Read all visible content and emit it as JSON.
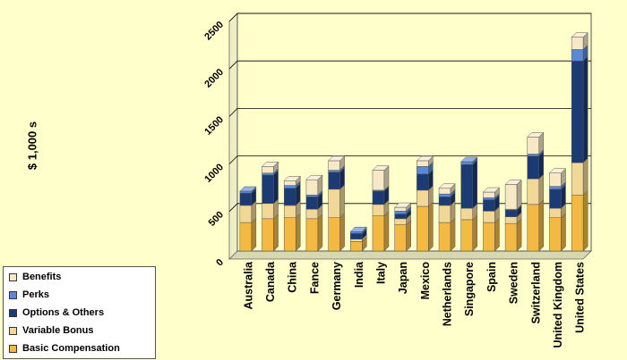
{
  "chart_data": {
    "type": "bar",
    "stacked": true,
    "ylabel": "$ 1,000 s",
    "ylim": [
      0,
      2500
    ],
    "yticks": [
      0,
      500,
      1000,
      1500,
      2000,
      2500
    ],
    "grid": true,
    "legend_position": "bottom-left",
    "categories": [
      "Australia",
      "Canada",
      "China",
      "Fance",
      "Germany",
      "India",
      "Italy",
      "Japan",
      "Mexico",
      "Netherlands",
      "Singapore",
      "Spain",
      "Sweden",
      "Switzerland",
      "United Kingdom",
      "United States"
    ],
    "series": [
      {
        "name": "Basic Compensation",
        "color": "#F4B942",
        "values": [
          300,
          340,
          350,
          340,
          350,
          100,
          370,
          280,
          470,
          300,
          330,
          300,
          290,
          490,
          350,
          590
        ]
      },
      {
        "name": "Variable Bonus",
        "color": "#F2D896",
        "values": [
          180,
          160,
          130,
          100,
          300,
          25,
          120,
          60,
          170,
          180,
          120,
          120,
          70,
          270,
          100,
          340
        ]
      },
      {
        "name": "Options & Others",
        "color": "#1C3A73",
        "values": [
          130,
          300,
          180,
          130,
          180,
          60,
          140,
          50,
          170,
          90,
          460,
          120,
          70,
          240,
          200,
          1070
        ]
      },
      {
        "name": "Perks",
        "color": "#5A8AD6",
        "values": [
          20,
          20,
          30,
          20,
          20,
          20,
          10,
          30,
          80,
          30,
          30,
          20,
          10,
          20,
          30,
          120
        ]
      },
      {
        "name": "Benefits",
        "color": "#F7E8C6",
        "values": [
          0,
          70,
          50,
          160,
          100,
          0,
          210,
          40,
          60,
          60,
          0,
          60,
          260,
          180,
          140,
          130
        ]
      }
    ]
  },
  "legend": {
    "items": [
      {
        "label": "Benefits",
        "color": "#F7E8C6"
      },
      {
        "label": "Perks",
        "color": "#5A8AD6"
      },
      {
        "label": "Options & Others",
        "color": "#1C3A73"
      },
      {
        "label": "Variable Bonus",
        "color": "#F2D896"
      },
      {
        "label": "Basic Compensation",
        "color": "#F4B942"
      }
    ]
  }
}
